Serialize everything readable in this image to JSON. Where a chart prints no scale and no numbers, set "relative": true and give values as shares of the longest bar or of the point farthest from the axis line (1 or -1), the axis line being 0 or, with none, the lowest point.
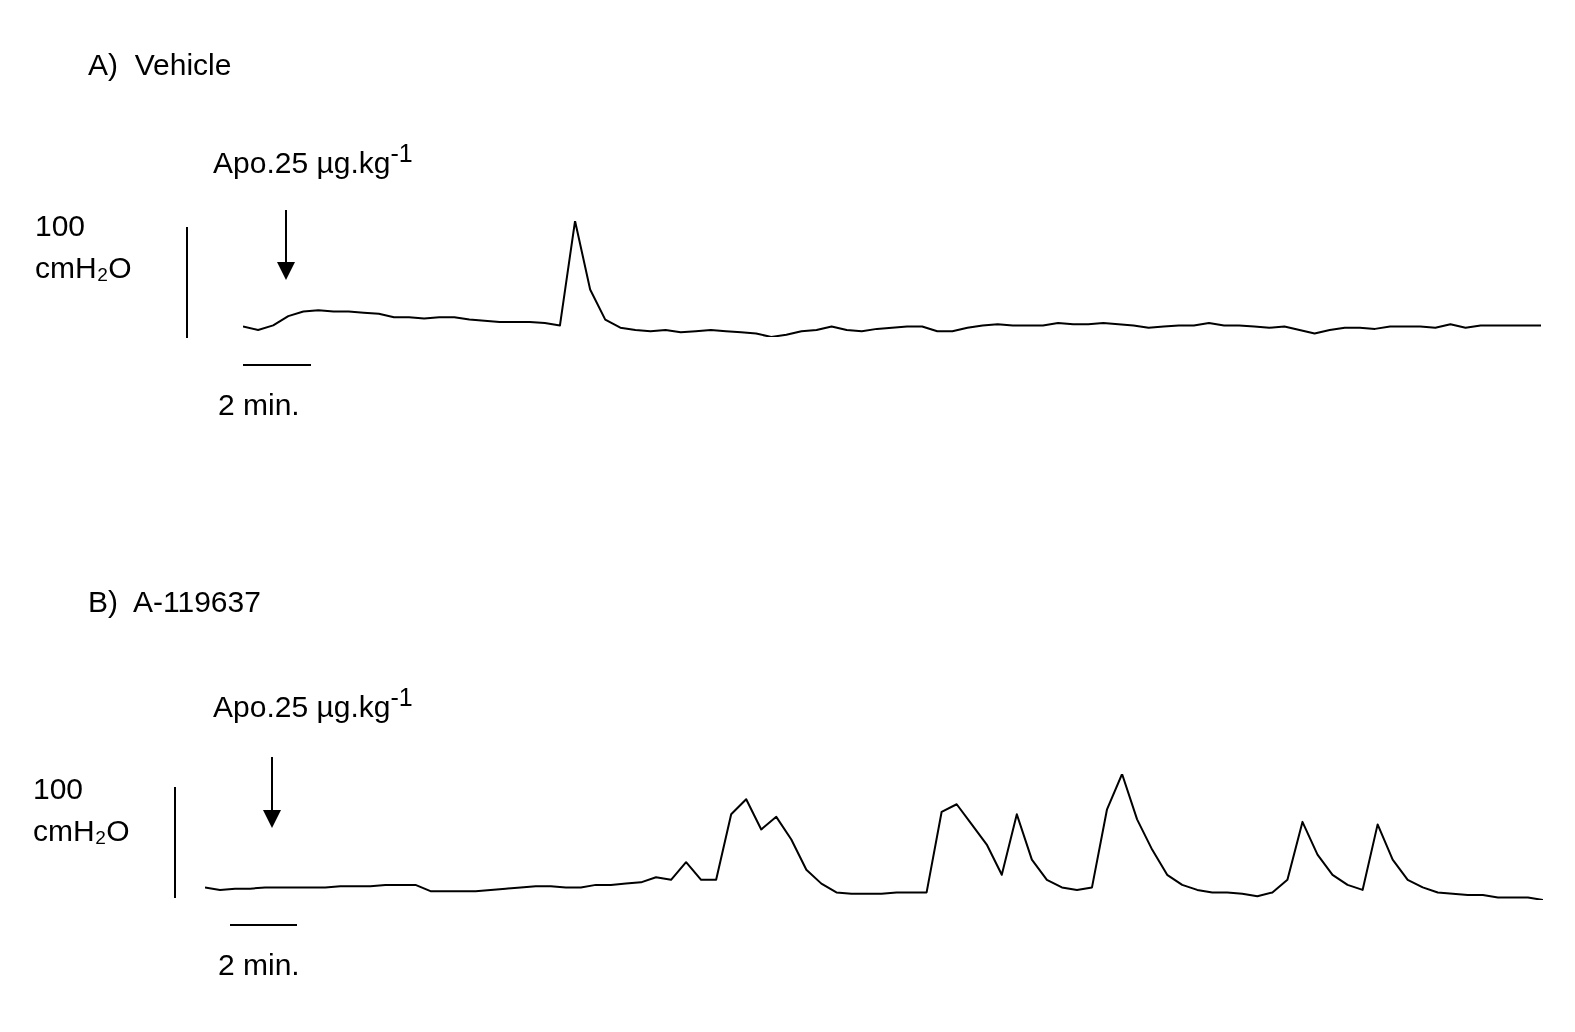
{
  "chart_data": [
    {
      "type": "line",
      "title": "A)  Vehicle",
      "relative": true,
      "annotations": [
        "Apo.25 µg.kg$^{-1}$",
        "100 cmH₂O",
        "2 min."
      ],
      "categories": [
        null,
        null,
        null,
        null,
        null,
        null,
        null,
        null,
        null,
        null,
        null,
        null,
        null,
        null,
        null,
        null,
        null,
        null,
        null,
        null,
        null,
        null,
        null,
        null,
        null,
        null,
        null,
        null,
        null,
        null,
        null,
        null,
        null,
        null,
        null,
        null,
        null,
        null,
        null,
        null,
        null,
        null,
        null,
        null,
        null,
        null,
        null,
        null,
        null,
        null,
        null,
        null,
        null,
        null,
        null,
        null,
        null,
        null,
        null,
        null,
        null,
        null,
        null,
        null,
        null,
        null,
        null,
        null,
        null,
        null,
        null,
        null,
        null,
        null,
        null,
        null,
        null,
        null,
        null,
        null,
        null,
        null,
        null,
        null,
        null,
        null,
        null
      ],
      "series": [
        {
          "color": "#000000",
          "values": [
            0.09,
            0.06,
            0.1,
            0.18,
            0.22,
            0.23,
            0.22,
            0.22,
            0.21,
            0.2,
            0.17,
            0.17,
            0.16,
            0.17,
            0.17,
            0.15,
            0.14,
            0.13,
            0.13,
            0.13,
            0.12,
            0.1,
            1,
            0.41,
            0.15,
            0.08,
            0.06,
            0.05,
            0.06,
            0.04,
            0.05,
            0.06,
            0.05,
            0.04,
            0.03,
            0,
            0.02,
            0.05,
            0.06,
            0.09,
            0.06,
            0.05,
            0.07,
            0.08,
            0.09,
            0.09,
            0.05,
            0.05,
            0.08,
            0.1,
            0.11,
            0.1,
            0.1,
            0.1,
            0.12,
            0.11,
            0.11,
            0.12,
            0.11,
            0.1,
            0.08,
            0.09,
            0.1,
            0.1,
            0.12,
            0.1,
            0.1,
            0.09,
            0.08,
            0.09,
            0.06,
            0.03,
            0.06,
            0.08,
            0.08,
            0.07,
            0.09,
            0.09,
            0.09,
            0.08,
            0.11,
            0.08,
            0.1,
            0.1,
            0.1,
            0.1,
            0.1
          ]
        }
      ]
    },
    {
      "type": "line",
      "title": "B)  A-119637",
      "relative": true,
      "annotations": [
        "Apo.25 µg.kg$^{-1}$",
        "100 cmH₂O",
        "2 min."
      ],
      "categories": [
        null,
        null,
        null,
        null,
        null,
        null,
        null,
        null,
        null,
        null,
        null,
        null,
        null,
        null,
        null,
        null,
        null,
        null,
        null,
        null,
        null,
        null,
        null,
        null,
        null,
        null,
        null,
        null,
        null,
        null,
        null,
        null,
        null,
        null,
        null,
        null,
        null,
        null,
        null,
        null,
        null,
        null,
        null,
        null,
        null,
        null,
        null,
        null,
        null,
        null,
        null,
        null,
        null,
        null,
        null,
        null,
        null,
        null,
        null,
        null,
        null,
        null,
        null,
        null,
        null,
        null,
        null,
        null,
        null,
        null,
        null,
        null,
        null,
        null,
        null,
        null,
        null,
        null,
        null,
        null,
        null,
        null,
        null,
        null,
        null,
        null,
        null,
        null,
        null,
        null
      ],
      "series": [
        {
          "color": "#000000",
          "values": [
            0.1,
            0.08,
            0.09,
            0.09,
            0.1,
            0.1,
            0.1,
            0.1,
            0.1,
            0.11,
            0.11,
            0.11,
            0.12,
            0.12,
            0.12,
            0.07,
            0.07,
            0.07,
            0.07,
            0.08,
            0.09,
            0.1,
            0.11,
            0.11,
            0.1,
            0.1,
            0.12,
            0.12,
            0.13,
            0.14,
            0.18,
            0.16,
            0.3,
            0.16,
            0.16,
            0.68,
            0.8,
            0.56,
            0.66,
            0.48,
            0.24,
            0.13,
            0.06,
            0.05,
            0.05,
            0.05,
            0.06,
            0.06,
            0.06,
            0.7,
            0.76,
            0.6,
            0.44,
            0.2,
            0.68,
            0.32,
            0.16,
            0.1,
            0.08,
            0.1,
            0.72,
            1,
            0.64,
            0.4,
            0.2,
            0.12,
            0.08,
            0.06,
            0.06,
            0.05,
            0.03,
            0.06,
            0.16,
            0.62,
            0.36,
            0.2,
            0.12,
            0.08,
            0.6,
            0.32,
            0.16,
            0.1,
            0.06,
            0.05,
            0.04,
            0.04,
            0.02,
            0.02,
            0.02,
            0
          ]
        }
      ]
    }
  ]
}
